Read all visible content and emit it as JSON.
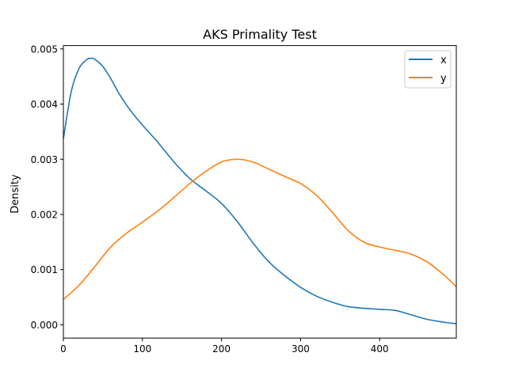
{
  "chart_data": {
    "type": "line",
    "title": "AKS Primality Test",
    "xlabel": "",
    "ylabel": "Density",
    "xlim": [
      0,
      497
    ],
    "ylim": [
      -0.00024,
      0.00506
    ],
    "x_ticks": [
      0,
      100,
      200,
      300,
      400
    ],
    "y_ticks": [
      0.0,
      0.001,
      0.002,
      0.003,
      0.004,
      0.005
    ],
    "x_tick_labels": [
      "0",
      "100",
      "200",
      "300",
      "400"
    ],
    "y_tick_labels": [
      "0.000",
      "0.001",
      "0.002",
      "0.003",
      "0.004",
      "0.005"
    ],
    "grid": false,
    "legend_position": "top-right",
    "series": [
      {
        "name": "x",
        "color": "#1f77b4",
        "x": [
          0,
          10,
          20,
          30,
          35,
          40,
          50,
          60,
          70,
          80,
          90,
          100,
          110,
          120,
          140,
          160,
          180,
          200,
          220,
          240,
          260,
          280,
          300,
          320,
          340,
          360,
          380,
          400,
          420,
          440,
          460,
          480,
          497
        ],
        "y": [
          0.00337,
          0.00423,
          0.00465,
          0.00481,
          0.00483,
          0.00481,
          0.00468,
          0.00446,
          0.0042,
          0.00398,
          0.00379,
          0.00362,
          0.00346,
          0.0033,
          0.00295,
          0.00265,
          0.00243,
          0.0022,
          0.00187,
          0.00148,
          0.00114,
          0.00089,
          0.00068,
          0.00052,
          0.00041,
          0.00033,
          0.0003,
          0.00028,
          0.00026,
          0.00018,
          0.0001,
          5e-05,
          2e-05
        ]
      },
      {
        "name": "y",
        "color": "#ff7f0e",
        "x": [
          0,
          20,
          40,
          60,
          80,
          100,
          120,
          140,
          160,
          180,
          200,
          220,
          240,
          260,
          280,
          300,
          320,
          340,
          360,
          380,
          400,
          420,
          440,
          460,
          480,
          497
        ],
        "y": [
          0.00046,
          0.00072,
          0.00106,
          0.00141,
          0.00166,
          0.00186,
          0.00207,
          0.00231,
          0.00256,
          0.00278,
          0.00295,
          0.003,
          0.00295,
          0.00282,
          0.00269,
          0.00256,
          0.00235,
          0.00204,
          0.00171,
          0.0015,
          0.00141,
          0.00135,
          0.00128,
          0.00114,
          0.00092,
          0.00069
        ]
      }
    ]
  }
}
